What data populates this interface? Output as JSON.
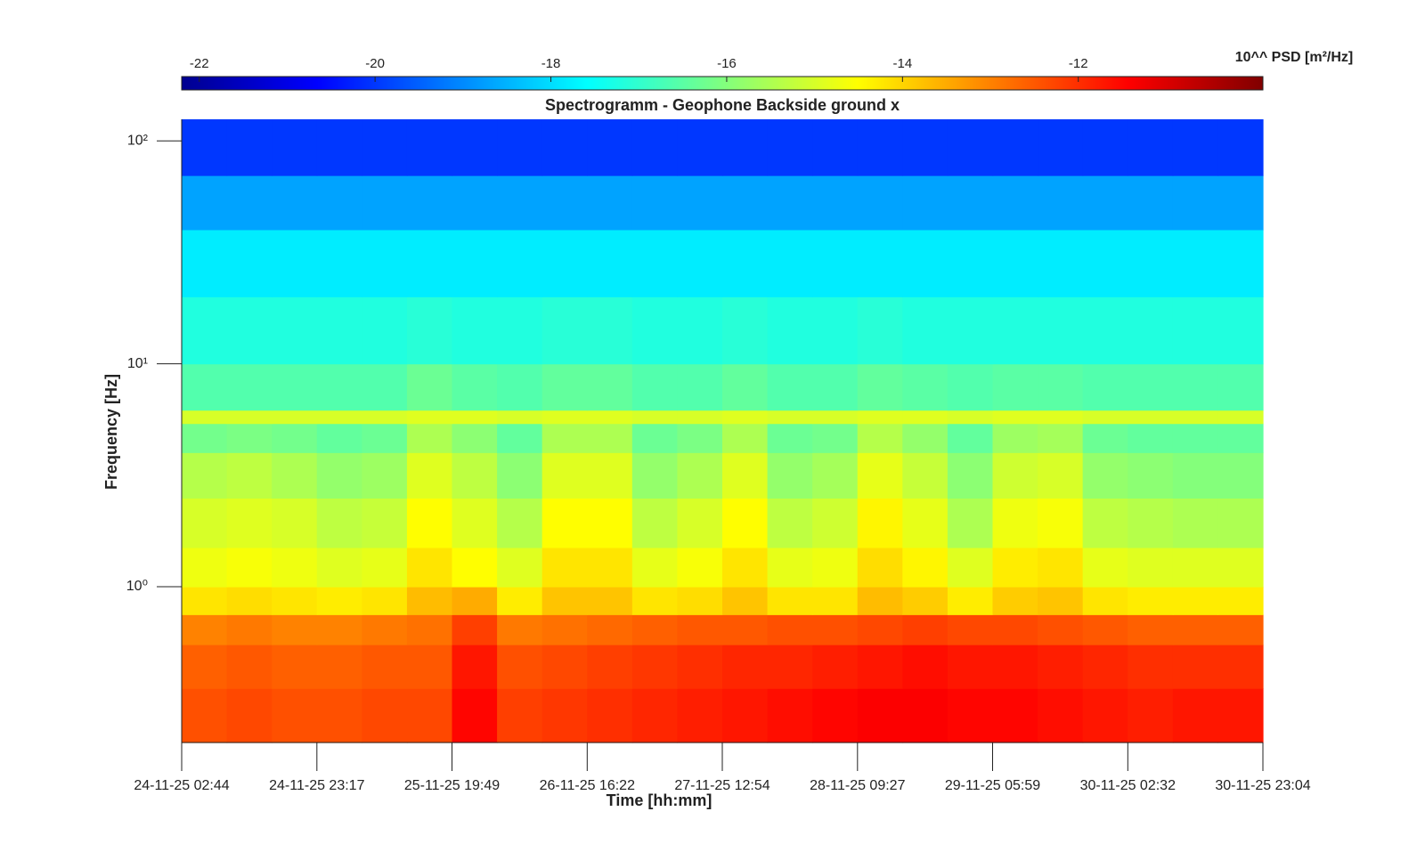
{
  "chart_data": {
    "type": "heatmap",
    "title": "Spectrogramm - Geophone Backside ground x",
    "x_label": "Time [hh:mm]",
    "y_label": "Frequency [Hz]",
    "colorbar_label": "10^^ PSD [m²/Hz]",
    "colormap": "jet",
    "log_y": true,
    "xlim": [
      "24-11-25 02:44",
      "30-11-25 23:04"
    ],
    "xticks": [
      "24-11-25 02:44",
      "24-11-25 23:17",
      "25-11-25 19:49",
      "26-11-25 16:22",
      "27-11-25 12:54",
      "28-11-25 09:27",
      "29-11-25 05:59",
      "30-11-25 02:32",
      "30-11-25 23:04"
    ],
    "ylim": [
      0.2,
      125
    ],
    "yticks": [
      {
        "value": 1,
        "label": "10⁰"
      },
      {
        "value": 10,
        "label": "10¹"
      },
      {
        "value": 100,
        "label": "10²"
      }
    ],
    "clim": [
      -22.2,
      -9.9
    ],
    "cticks": [
      -22,
      -20,
      -18,
      -16,
      -14,
      -12
    ],
    "freq_edges": [
      0.2,
      0.35,
      0.55,
      0.75,
      1,
      1.5,
      2.5,
      4,
      5.4,
      6.2,
      10,
      20,
      40,
      70,
      125
    ],
    "z": [
      [
        -12.4,
        -12.3,
        -12.4,
        -12.4,
        -12.3,
        -12.3,
        -11.5,
        -12.2,
        -12.1,
        -12.0,
        -11.9,
        -11.8,
        -11.7,
        -11.6,
        -11.5,
        -11.4,
        -11.4,
        -11.5,
        -11.5,
        -11.6,
        -11.7,
        -11.8,
        -11.7,
        -11.7
      ],
      [
        -12.6,
        -12.5,
        -12.6,
        -12.6,
        -12.5,
        -12.5,
        -11.7,
        -12.4,
        -12.3,
        -12.2,
        -12.1,
        -12.0,
        -11.9,
        -11.9,
        -11.8,
        -11.7,
        -11.6,
        -11.7,
        -11.7,
        -11.8,
        -11.9,
        -12.0,
        -12.0,
        -12.0
      ],
      [
        -13.0,
        -12.9,
        -13.0,
        -13.0,
        -12.9,
        -12.8,
        -12.2,
        -12.9,
        -12.8,
        -12.7,
        -12.6,
        -12.5,
        -12.5,
        -12.4,
        -12.4,
        -12.3,
        -12.2,
        -12.3,
        -12.3,
        -12.4,
        -12.5,
        -12.6,
        -12.6,
        -12.6
      ],
      [
        -14.2,
        -14.1,
        -14.2,
        -14.3,
        -14.2,
        -13.7,
        -13.5,
        -14.3,
        -13.8,
        -13.8,
        -14.2,
        -14.1,
        -13.8,
        -14.2,
        -14.2,
        -13.7,
        -13.9,
        -14.3,
        -13.9,
        -13.8,
        -14.2,
        -14.3,
        -14.3,
        -14.3
      ],
      [
        -14.7,
        -14.6,
        -14.7,
        -14.9,
        -14.8,
        -14.2,
        -14.5,
        -14.9,
        -14.2,
        -14.2,
        -14.8,
        -14.6,
        -14.2,
        -14.8,
        -14.7,
        -14.1,
        -14.4,
        -14.9,
        -14.3,
        -14.2,
        -14.8,
        -14.9,
        -14.9,
        -14.9
      ],
      [
        -15.0,
        -14.9,
        -15.0,
        -15.3,
        -15.2,
        -14.5,
        -14.9,
        -15.4,
        -14.5,
        -14.5,
        -15.3,
        -15.0,
        -14.5,
        -15.3,
        -15.1,
        -14.4,
        -14.8,
        -15.5,
        -14.7,
        -14.6,
        -15.3,
        -15.4,
        -15.5,
        -15.5
      ],
      [
        -15.4,
        -15.3,
        -15.5,
        -15.8,
        -15.7,
        -14.9,
        -15.3,
        -15.9,
        -14.9,
        -14.9,
        -15.8,
        -15.5,
        -14.9,
        -15.8,
        -15.6,
        -14.8,
        -15.2,
        -15.9,
        -15.1,
        -15.0,
        -15.8,
        -15.9,
        -16.0,
        -16.0
      ],
      [
        -16.2,
        -16.1,
        -16.2,
        -16.4,
        -16.3,
        -15.5,
        -15.9,
        -16.4,
        -15.5,
        -15.5,
        -16.3,
        -16.1,
        -15.5,
        -16.3,
        -16.2,
        -15.4,
        -15.8,
        -16.4,
        -15.7,
        -15.6,
        -16.3,
        -16.4,
        -16.4,
        -16.4
      ],
      [
        -15.0,
        -15.0,
        -15.0,
        -15.0,
        -15.0,
        -14.9,
        -14.9,
        -15.0,
        -14.9,
        -14.9,
        -15.0,
        -15.0,
        -14.9,
        -15.0,
        -15.0,
        -14.9,
        -14.9,
        -15.0,
        -14.9,
        -14.9,
        -15.0,
        -15.0,
        -15.0,
        -15.0
      ],
      [
        -16.6,
        -16.6,
        -16.6,
        -16.6,
        -16.6,
        -16.3,
        -16.5,
        -16.6,
        -16.4,
        -16.4,
        -16.6,
        -16.6,
        -16.4,
        -16.6,
        -16.6,
        -16.4,
        -16.5,
        -16.6,
        -16.5,
        -16.5,
        -16.6,
        -16.6,
        -16.6,
        -16.6
      ],
      [
        -17.2,
        -17.2,
        -17.2,
        -17.2,
        -17.2,
        -17.1,
        -17.2,
        -17.2,
        -17.1,
        -17.1,
        -17.2,
        -17.2,
        -17.1,
        -17.2,
        -17.2,
        -17.1,
        -17.2,
        -17.2,
        -17.2,
        -17.2,
        -17.2,
        -17.2,
        -17.2,
        -17.2
      ],
      [
        -17.8,
        -17.8,
        -17.8,
        -17.8,
        -17.8,
        -17.8,
        -17.8,
        -17.8,
        -17.8,
        -17.8,
        -17.8,
        -17.8,
        -17.8,
        -17.8,
        -17.8,
        -17.8,
        -17.8,
        -17.8,
        -17.8,
        -17.8,
        -17.8,
        -17.8,
        -17.8,
        -17.8
      ],
      [
        -18.7,
        -18.7,
        -18.7,
        -18.7,
        -18.7,
        -18.7,
        -18.7,
        -18.7,
        -18.7,
        -18.7,
        -18.7,
        -18.7,
        -18.7,
        -18.7,
        -18.7,
        -18.7,
        -18.7,
        -18.7,
        -18.7,
        -18.7,
        -18.7,
        -18.7,
        -18.7,
        -18.7
      ],
      [
        -20.0,
        -20.0,
        -20.0,
        -20.0,
        -20.0,
        -20.0,
        -20.0,
        -20.0,
        -20.0,
        -20.0,
        -20.0,
        -20.0,
        -20.0,
        -20.0,
        -20.0,
        -20.0,
        -20.0,
        -20.0,
        -20.0,
        -20.0,
        -20.0,
        -20.0,
        -20.0,
        -20.0
      ]
    ]
  }
}
